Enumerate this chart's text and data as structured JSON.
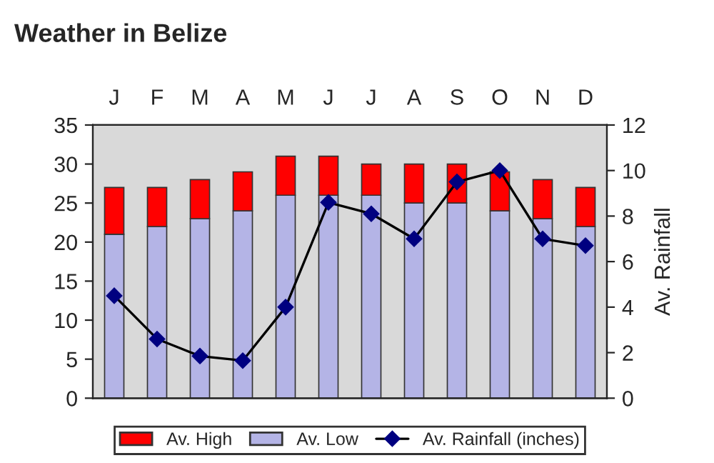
{
  "chart_data": {
    "type": "bar",
    "title": "Weather in Belize",
    "categories": [
      "J",
      "F",
      "M",
      "A",
      "M",
      "J",
      "J",
      "A",
      "S",
      "O",
      "N",
      "D"
    ],
    "stacked": true,
    "series": [
      {
        "name": "Av. Low",
        "color": "#b4b4e6",
        "values": [
          21,
          22,
          23,
          24,
          26,
          26,
          26,
          25,
          25,
          24,
          23,
          22
        ]
      },
      {
        "name": "Av. High",
        "color": "#ff0000",
        "values": [
          6,
          5,
          5,
          5,
          5,
          5,
          4,
          5,
          5,
          5,
          5,
          5
        ]
      },
      {
        "name": "Av. Rainfall (inches)",
        "type": "line",
        "axis": "y2",
        "color": "#000000",
        "marker": "diamond",
        "line_style": "solid",
        "values": [
          4.5,
          2.6,
          1.85,
          1.65,
          4.0,
          8.6,
          8.1,
          7.0,
          9.5,
          10.0,
          7.0,
          6.7
        ]
      }
    ],
    "ylim": [
      0,
      35
    ],
    "yticks": [
      0,
      5,
      10,
      15,
      20,
      25,
      30,
      35
    ],
    "y2lim": [
      0,
      12
    ],
    "y2ticks": [
      0,
      2,
      4,
      6,
      8,
      10,
      12
    ],
    "y2label": "Av. Rainfall",
    "legend": "bottom",
    "grid": false
  }
}
